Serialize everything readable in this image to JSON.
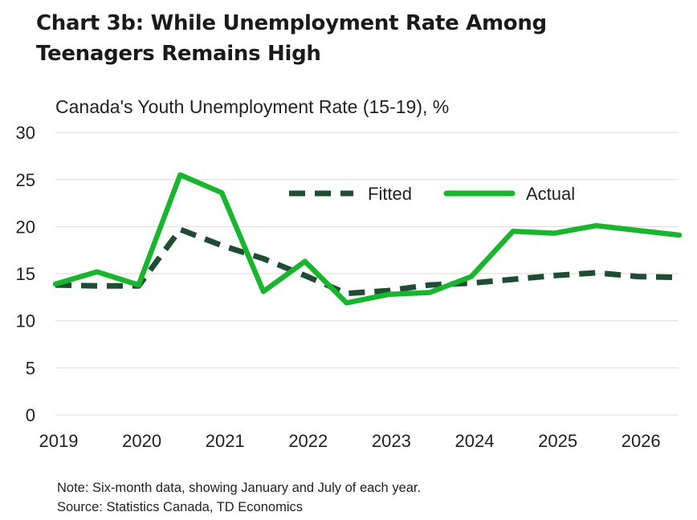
{
  "title_lines": [
    "Chart 3b: While Unemployment Rate Among",
    "Teenagers Remains High"
  ],
  "notes": {
    "note": "Note: Six-month data, showing January and July of each year.",
    "source": "Source: Statistics Canada, TD Economics"
  },
  "chart_data": {
    "type": "line",
    "title": "Chart 3b: While Unemployment Rate Among Teenagers Remains High",
    "subtitle": "Canada's Youth Unemployment Rate (15-19), %",
    "x": [
      "2019-01",
      "2019-07",
      "2020-01",
      "2020-07",
      "2021-01",
      "2021-07",
      "2022-01",
      "2022-07",
      "2023-01",
      "2023-07",
      "2024-01",
      "2024-07",
      "2025-01",
      "2025-07",
      "2026-01",
      "2026-07"
    ],
    "x_tick_labels": [
      "2019",
      "2020",
      "2021",
      "2022",
      "2023",
      "2024",
      "2025",
      "2026"
    ],
    "y_ticks": [
      0,
      5,
      10,
      15,
      20,
      25,
      30
    ],
    "ylim": [
      0,
      30
    ],
    "grid": "horizontal",
    "legend_position": "top-right",
    "series": [
      {
        "name": "Fitted",
        "style": "dashed",
        "color": "#1e4d34",
        "values": [
          13.8,
          13.7,
          13.7,
          19.7,
          18.0,
          16.6,
          14.8,
          12.9,
          13.2,
          13.8,
          14.0,
          14.4,
          14.8,
          15.1,
          14.7,
          14.6
        ]
      },
      {
        "name": "Actual",
        "style": "solid",
        "color": "#1ab52f",
        "values": [
          13.9,
          15.2,
          13.8,
          25.5,
          23.6,
          13.1,
          16.3,
          11.9,
          12.8,
          13.0,
          14.7,
          19.5,
          19.3,
          20.1,
          19.6,
          19.1
        ]
      }
    ]
  }
}
